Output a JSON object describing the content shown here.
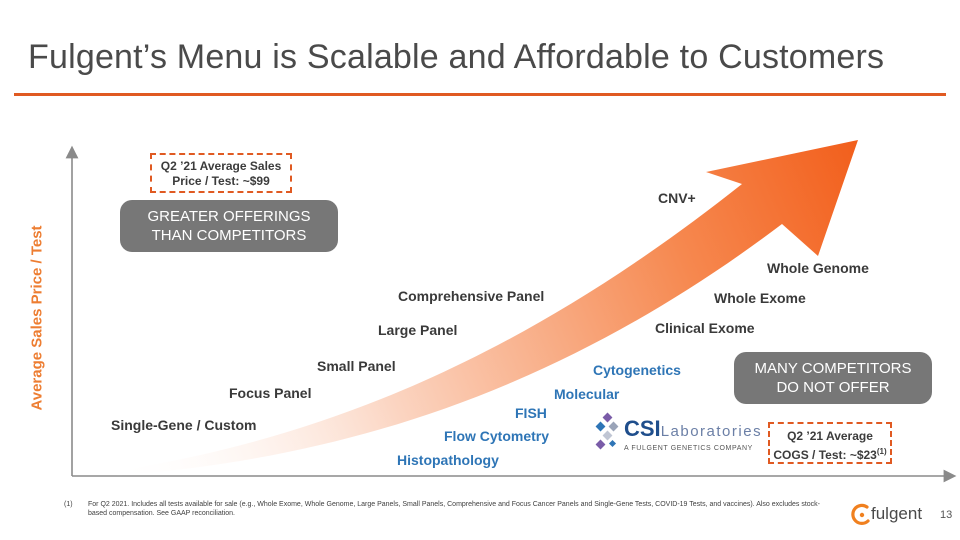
{
  "title": "Fulgent’s Menu is Scalable and Affordable to Customers",
  "axis": {
    "ylabel": "Average Sales Price / Test"
  },
  "asp_box": {
    "line1": "Q2 ’21 Average Sales",
    "line2": "Price / Test: ~$99"
  },
  "cogs_box": {
    "line1": "Q2 ’21 Average",
    "line2": "COGS  / Test: ~$23",
    "sup": "(1)"
  },
  "callouts": {
    "greater_line1": "GREATER OFFERINGS",
    "greater_line2": "THAN COMPETITORS",
    "many_line1": "MANY COMPETITORS",
    "many_line2": "DO NOT OFFER"
  },
  "panels": [
    "Single-Gene / Custom",
    "Focus Panel",
    "Small Panel",
    "Large Panel",
    "Comprehensive Panel",
    "CNV+",
    "Whole Genome",
    "Whole Exome",
    "Clinical Exome"
  ],
  "specialty": [
    "Cytogenetics",
    "Molecular",
    "FISH",
    "Flow Cytometry",
    "Histopathology"
  ],
  "csi_logo": {
    "name": "CSI",
    "suffix": "Laboratories",
    "sub": "A FULGENT GENETICS COMPANY"
  },
  "footnote": {
    "num": "(1)",
    "text": "For Q2 2021. Includes all tests available for sale (e.g., Whole Exome, Whole Genome, Large Panels, Small Panels, Comprehensive and Focus Cancer Panels and Single-Gene Tests, COVID-19 Tests, and vaccines). Also excludes stock-based compensation. See GAAP reconciliation."
  },
  "page_number": "13",
  "brand": {
    "logo_text": "fulgent",
    "accent": "#e05a22",
    "arrow_light": "#fde3d6",
    "arrow_dark": "#f25f1c",
    "blue": "#2e75b6",
    "pill_gray": "#777777"
  }
}
